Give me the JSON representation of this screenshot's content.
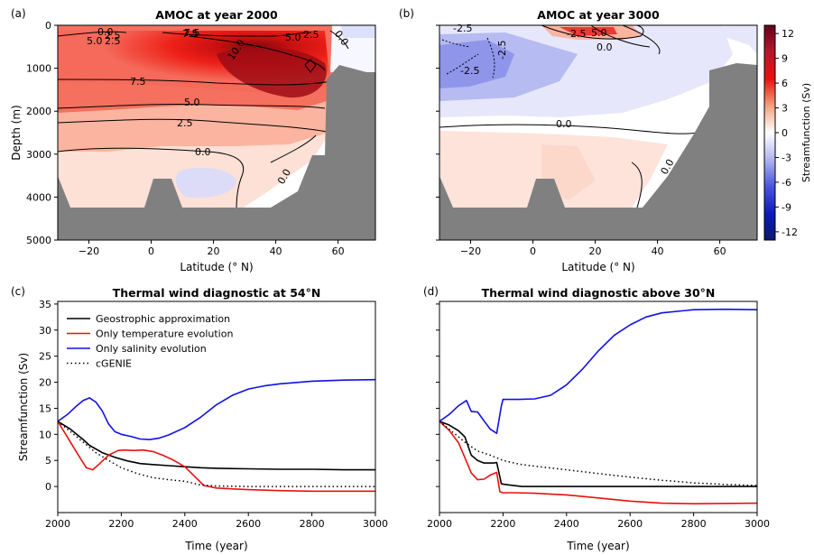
{
  "colors": {
    "land": "#808080",
    "black_line": "#000000",
    "red_line": "#e8110f",
    "blue_line": "#1010e8",
    "cmap_pos": "#67001f",
    "cmap_neg": "#0a1a6e"
  },
  "colorbar": {
    "label": "Streamfunction (Sv)",
    "ticks": [
      "12",
      "9",
      "6",
      "3",
      "0",
      "-3",
      "-6",
      "-9",
      "-12"
    ]
  },
  "chart_data": [
    {
      "id": "a",
      "panel_label": "(a)",
      "type": "heatmap",
      "title": "AMOC at year 2000",
      "xlabel": "Latitude (° N)",
      "ylabel": "Depth (m)",
      "xlim": [
        -30,
        72
      ],
      "ylim": [
        5000,
        0
      ],
      "xticks": [
        "−20",
        "0",
        "20",
        "40",
        "60"
      ],
      "yticks": [
        "0",
        "1000",
        "2000",
        "3000",
        "4000",
        "5000"
      ],
      "contour_labels": [
        "0.0",
        "2.5",
        "5.0",
        "7.5",
        "10.0",
        "7.5",
        "5.0",
        "2.5",
        "0.0",
        "0.0",
        "2.5",
        "5.0",
        "7.5",
        "0.0",
        "2.5"
      ],
      "max_value": 11,
      "min_value": -1
    },
    {
      "id": "b",
      "panel_label": "(b)",
      "type": "heatmap",
      "title": "AMOC at year 3000",
      "xlabel": "Latitude (° N)",
      "ylabel": "",
      "xlim": [
        -30,
        72
      ],
      "ylim": [
        5000,
        0
      ],
      "xticks": [
        "−20",
        "0",
        "20",
        "40",
        "60"
      ],
      "contour_labels": [
        "-2.5",
        "-2.5",
        "-2.5",
        "0.0",
        "0.0",
        "0.0",
        "-2.5",
        "5.0"
      ],
      "max_value": 6,
      "min_value": -3
    },
    {
      "id": "c",
      "panel_label": "(c)",
      "type": "line",
      "title": "Thermal wind diagnostic at 54°N",
      "xlabel": "Time (year)",
      "ylabel": "Streamfunction (Sv)",
      "xlim": [
        2000,
        3000
      ],
      "ylim": [
        -5,
        35.5
      ],
      "xticks": [
        2000,
        2200,
        2400,
        2600,
        2800,
        3000
      ],
      "yticks": [
        0,
        5,
        10,
        15,
        20,
        25,
        30,
        35
      ],
      "legend_position": "top-left",
      "series": [
        {
          "name": "Geostrophic approximation",
          "color": "#000000",
          "dash": "solid",
          "x": [
            2000,
            2040,
            2080,
            2100,
            2140,
            2180,
            2220,
            2260,
            2300,
            2350,
            2400,
            2450,
            2500,
            2600,
            2700,
            2800,
            2900,
            3000
          ],
          "y": [
            12.5,
            11.0,
            9.0,
            7.9,
            6.5,
            5.6,
            4.9,
            4.4,
            4.2,
            4.0,
            3.8,
            3.6,
            3.5,
            3.4,
            3.3,
            3.3,
            3.2,
            3.2
          ]
        },
        {
          "name": "Only temperature evolution",
          "color": "#e8110f",
          "dash": "solid",
          "x": [
            2000,
            2030,
            2060,
            2090,
            2110,
            2130,
            2160,
            2190,
            2210,
            2240,
            2270,
            2300,
            2330,
            2360,
            2400,
            2430,
            2460,
            2500,
            2600,
            2700,
            2800,
            3000
          ],
          "y": [
            12.5,
            9.5,
            6.5,
            3.6,
            3.2,
            4.3,
            6.0,
            6.9,
            7.0,
            6.9,
            7.0,
            6.7,
            6.0,
            5.2,
            3.8,
            2.0,
            0.2,
            -0.3,
            -0.6,
            -0.8,
            -0.9,
            -0.9
          ]
        },
        {
          "name": "Only salinity evolution",
          "color": "#1010e8",
          "dash": "solid",
          "x": [
            2000,
            2030,
            2060,
            2080,
            2100,
            2120,
            2140,
            2160,
            2180,
            2200,
            2230,
            2260,
            2290,
            2320,
            2350,
            2400,
            2450,
            2500,
            2550,
            2600,
            2650,
            2700,
            2800,
            2900,
            3000
          ],
          "y": [
            12.5,
            13.8,
            15.5,
            16.5,
            17.0,
            16.2,
            14.5,
            12.0,
            10.5,
            10.0,
            9.6,
            9.1,
            9.0,
            9.3,
            9.9,
            11.3,
            13.3,
            15.7,
            17.5,
            18.7,
            19.3,
            19.7,
            20.2,
            20.4,
            20.5
          ]
        },
        {
          "name": "cGENIE",
          "color": "#000000",
          "dash": "dotted",
          "x": [
            2000,
            2040,
            2080,
            2120,
            2160,
            2200,
            2250,
            2300,
            2350,
            2400,
            2450,
            2500,
            2600,
            2700,
            2800,
            3000
          ],
          "y": [
            12.5,
            10.5,
            8.5,
            6.5,
            5.0,
            3.6,
            2.5,
            1.7,
            1.3,
            1.0,
            0.3,
            0.1,
            0.0,
            0.0,
            0.0,
            0.0
          ]
        }
      ]
    },
    {
      "id": "d",
      "panel_label": "(d)",
      "type": "line",
      "title": "Thermal wind diagnostic above 30°N",
      "xlabel": "Time (year)",
      "ylabel": "",
      "xlim": [
        2000,
        3000
      ],
      "ylim": [
        -5,
        35.5
      ],
      "xticks": [
        2000,
        2200,
        2400,
        2600,
        2800,
        3000
      ],
      "yticks": [],
      "series": [
        {
          "name": "Geostrophic approximation",
          "color": "#000000",
          "dash": "solid",
          "x": [
            2000,
            2030,
            2060,
            2080,
            2100,
            2120,
            2140,
            2170,
            2180,
            2195,
            2220,
            2260,
            2300,
            2400,
            2500,
            2600,
            2800,
            3000
          ],
          "y": [
            12.5,
            11.8,
            10.7,
            9.5,
            6.0,
            5.0,
            4.5,
            4.5,
            4.6,
            0.5,
            0.3,
            0.0,
            0.0,
            0.0,
            0.0,
            0.0,
            0.0,
            0.0
          ]
        },
        {
          "name": "Only temperature evolution",
          "color": "#e8110f",
          "dash": "solid",
          "x": [
            2000,
            2030,
            2060,
            2080,
            2100,
            2120,
            2140,
            2160,
            2180,
            2190,
            2200,
            2240,
            2300,
            2400,
            2500,
            2600,
            2700,
            2800,
            3000
          ],
          "y": [
            12.5,
            10.8,
            8.4,
            5.5,
            2.6,
            1.3,
            1.4,
            2.2,
            2.7,
            -1.0,
            -1.2,
            -1.2,
            -1.3,
            -1.6,
            -2.2,
            -2.8,
            -3.2,
            -3.3,
            -3.2
          ]
        },
        {
          "name": "Only salinity evolution",
          "color": "#1010e8",
          "dash": "solid",
          "x": [
            2000,
            2030,
            2060,
            2085,
            2100,
            2120,
            2140,
            2160,
            2180,
            2195,
            2200,
            2250,
            2300,
            2350,
            2400,
            2450,
            2500,
            2550,
            2600,
            2650,
            2700,
            2800,
            2900,
            3000
          ],
          "y": [
            12.5,
            13.8,
            15.5,
            16.5,
            14.4,
            14.3,
            12.6,
            11.0,
            10.2,
            15.5,
            16.7,
            16.7,
            16.8,
            17.5,
            19.5,
            22.5,
            26.0,
            29.0,
            31.0,
            32.5,
            33.3,
            33.9,
            34.0,
            33.9
          ]
        },
        {
          "name": "cGENIE",
          "color": "#000000",
          "dash": "dotted",
          "x": [
            2000,
            2040,
            2080,
            2120,
            2160,
            2200,
            2250,
            2300,
            2400,
            2500,
            2600,
            2700,
            2800,
            2900,
            3000
          ],
          "y": [
            12.5,
            10.5,
            8.5,
            6.8,
            6.0,
            5.0,
            4.3,
            3.9,
            3.2,
            2.5,
            1.8,
            1.2,
            0.7,
            0.4,
            0.2
          ]
        }
      ]
    }
  ]
}
